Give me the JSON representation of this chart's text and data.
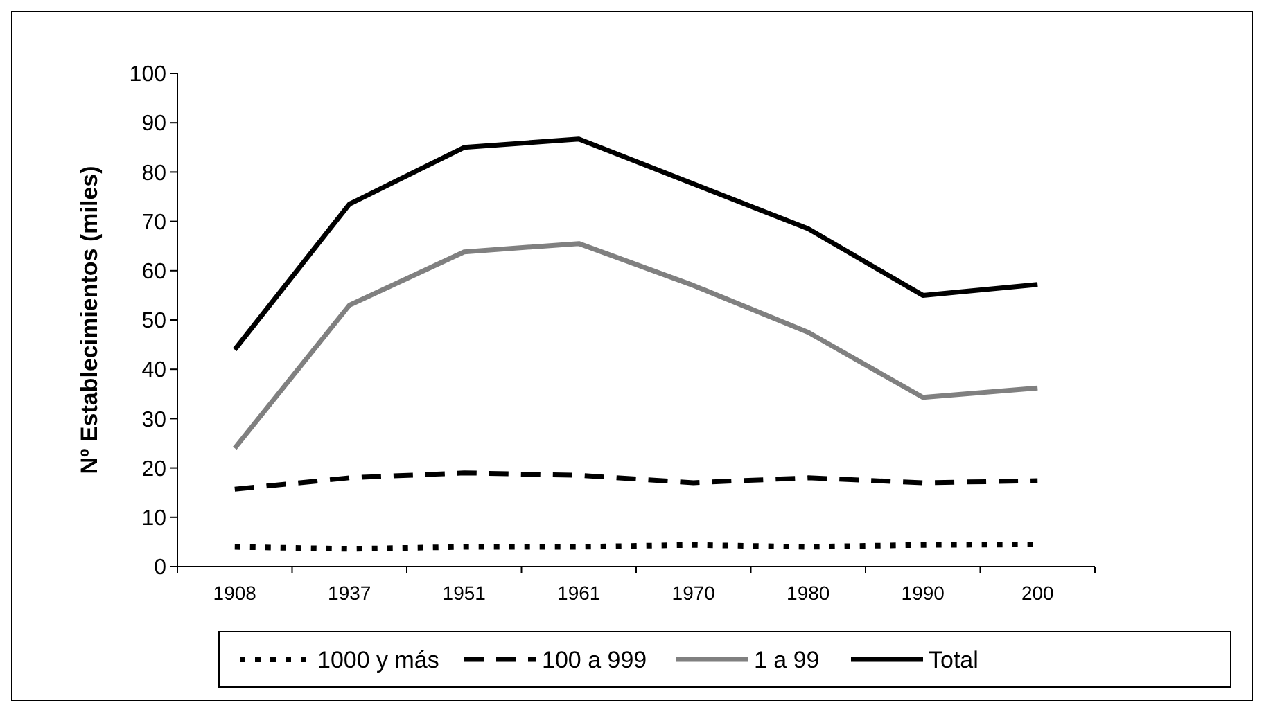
{
  "chart_data": {
    "type": "line",
    "ylabel": "Nº Establecimientos (miles)",
    "categories": [
      "1908",
      "1937",
      "1951",
      "1961",
      "1970",
      "1980",
      "1990",
      "200"
    ],
    "ylim": [
      0,
      100
    ],
    "yticks": [
      0,
      10,
      20,
      30,
      40,
      50,
      60,
      70,
      80,
      90,
      100
    ],
    "grid": false,
    "legend": "bottom",
    "marker": "none",
    "series": [
      {
        "name": "1000 y más",
        "color": "#000000",
        "line_style": "dotted",
        "values": [
          4,
          3.6,
          4,
          4,
          4.4,
          4,
          4.4,
          4.5
        ]
      },
      {
        "name": "100 a 999",
        "color": "#000000",
        "line_style": "dashed",
        "values": [
          15.7,
          18,
          19,
          18.5,
          17,
          18,
          17,
          17.4
        ]
      },
      {
        "name": "1 a 99",
        "color": "#808080",
        "line_style": "solid",
        "values": [
          24,
          53,
          63.8,
          65.5,
          57,
          47.5,
          34.3,
          36.2
        ]
      },
      {
        "name": "Total",
        "color": "#000000",
        "line_style": "solid",
        "values": [
          44,
          73.5,
          85,
          86.7,
          77.6,
          68.5,
          55,
          57.2
        ]
      }
    ]
  }
}
